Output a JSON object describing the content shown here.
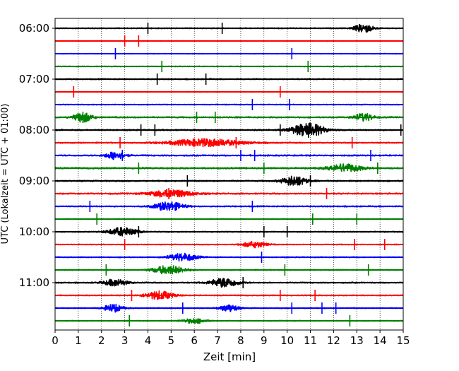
{
  "chart_data": {
    "type": "line",
    "subtype": "helicorder",
    "title": "",
    "xlabel": "Zeit  [min]",
    "ylabel": "UTC (Lokalzeit = UTC + 01:00)",
    "xlim": [
      0,
      15
    ],
    "x_ticks": [
      0,
      1,
      2,
      3,
      4,
      5,
      6,
      7,
      8,
      9,
      10,
      11,
      12,
      13,
      14,
      15
    ],
    "y_time_range": [
      "06:00",
      "11:45"
    ],
    "row_interval_min": 15,
    "y_tick_labels": [
      "06:00",
      "07:00",
      "08:00",
      "09:00",
      "10:00",
      "11:00"
    ],
    "grid": "vertical dotted lines at each minute",
    "color_cycle": [
      "#000000",
      "#ff0000",
      "#0000ff",
      "#008000"
    ],
    "rows": [
      {
        "time": "06:00",
        "color": "#000000",
        "spikes": [
          4.0,
          7.2
        ],
        "bursts": [
          [
            13.3,
            0.4,
            1.0
          ]
        ],
        "noise": 0.6
      },
      {
        "time": "06:15",
        "color": "#ff0000",
        "spikes": [
          3.0,
          3.6
        ],
        "bursts": [],
        "noise": 0.4
      },
      {
        "time": "06:30",
        "color": "#0000ff",
        "spikes": [
          2.6,
          10.2
        ],
        "bursts": [],
        "noise": 0.4
      },
      {
        "time": "06:45",
        "color": "#008000",
        "spikes": [
          4.6,
          10.9
        ],
        "bursts": [],
        "noise": 0.5
      },
      {
        "time": "07:00",
        "color": "#000000",
        "spikes": [
          4.4,
          6.5
        ],
        "bursts": [],
        "noise": 0.7
      },
      {
        "time": "07:15",
        "color": "#ff0000",
        "spikes": [
          0.8,
          9.7
        ],
        "bursts": [],
        "noise": 0.4
      },
      {
        "time": "07:30",
        "color": "#0000ff",
        "spikes": [
          8.5,
          10.1
        ],
        "bursts": [],
        "noise": 0.5
      },
      {
        "time": "07:45",
        "color": "#008000",
        "spikes": [
          1.2,
          6.1,
          6.9
        ],
        "bursts": [
          [
            1.2,
            0.4,
            1.1
          ],
          [
            13.3,
            0.4,
            0.9
          ]
        ],
        "noise": 0.8
      },
      {
        "time": "08:00",
        "color": "#000000",
        "spikes": [
          3.7,
          4.3,
          9.7,
          14.9
        ],
        "bursts": [
          [
            10.9,
            0.7,
            1.6
          ]
        ],
        "noise": 0.8
      },
      {
        "time": "08:15",
        "color": "#ff0000",
        "spikes": [
          2.8,
          7.8,
          12.8
        ],
        "bursts": [
          [
            6.5,
            1.5,
            0.9
          ]
        ],
        "noise": 0.7
      },
      {
        "time": "08:30",
        "color": "#0000ff",
        "spikes": [
          2.9,
          8.0,
          8.6,
          13.6
        ],
        "bursts": [
          [
            2.6,
            0.4,
            0.9
          ]
        ],
        "noise": 0.8
      },
      {
        "time": "08:45",
        "color": "#008000",
        "spikes": [
          3.6,
          9.0,
          13.9
        ],
        "bursts": [
          [
            12.5,
            0.7,
            0.9
          ]
        ],
        "noise": 0.9
      },
      {
        "time": "09:00",
        "color": "#000000",
        "spikes": [
          5.7,
          11.0
        ],
        "bursts": [
          [
            10.3,
            0.5,
            1.2
          ]
        ],
        "noise": 0.8
      },
      {
        "time": "09:15",
        "color": "#ff0000",
        "spikes": [
          4.9,
          11.7
        ],
        "bursts": [
          [
            5.0,
            0.9,
            0.9
          ]
        ],
        "noise": 0.8
      },
      {
        "time": "09:30",
        "color": "#0000ff",
        "spikes": [
          1.5,
          8.5
        ],
        "bursts": [
          [
            4.9,
            0.6,
            1.1
          ]
        ],
        "noise": 0.7
      },
      {
        "time": "09:45",
        "color": "#008000",
        "spikes": [
          1.8,
          11.1,
          13.0
        ],
        "bursts": [],
        "noise": 0.5
      },
      {
        "time": "10:00",
        "color": "#000000",
        "spikes": [
          3.6,
          9.0,
          10.0
        ],
        "bursts": [
          [
            2.9,
            0.6,
            1.0
          ]
        ],
        "noise": 0.6
      },
      {
        "time": "10:15",
        "color": "#ff0000",
        "spikes": [
          3.0,
          12.9,
          14.2
        ],
        "bursts": [
          [
            8.6,
            0.5,
            0.7
          ]
        ],
        "noise": 0.5
      },
      {
        "time": "10:30",
        "color": "#0000ff",
        "spikes": [
          8.9
        ],
        "bursts": [
          [
            5.5,
            0.6,
            0.9
          ]
        ],
        "noise": 0.6
      },
      {
        "time": "10:45",
        "color": "#008000",
        "spikes": [
          2.2,
          9.9,
          13.5
        ],
        "bursts": [
          [
            4.9,
            0.7,
            1.0
          ]
        ],
        "noise": 0.6
      },
      {
        "time": "11:00",
        "color": "#000000",
        "spikes": [
          8.1
        ],
        "bursts": [
          [
            7.3,
            0.6,
            1.1
          ],
          [
            2.6,
            0.5,
            0.8
          ]
        ],
        "noise": 0.7
      },
      {
        "time": "11:15",
        "color": "#ff0000",
        "spikes": [
          3.3,
          9.7,
          11.2
        ],
        "bursts": [
          [
            4.5,
            0.6,
            1.0
          ]
        ],
        "noise": 0.6
      },
      {
        "time": "11:30",
        "color": "#0000ff",
        "spikes": [
          5.5,
          10.2,
          11.5,
          12.1
        ],
        "bursts": [
          [
            2.5,
            0.4,
            0.9
          ],
          [
            7.5,
            0.4,
            0.8
          ]
        ],
        "noise": 0.6
      },
      {
        "time": "11:45",
        "color": "#008000",
        "spikes": [
          3.2,
          12.7
        ],
        "bursts": [
          [
            6.0,
            0.5,
            0.6
          ]
        ],
        "noise": 0.5
      }
    ]
  }
}
